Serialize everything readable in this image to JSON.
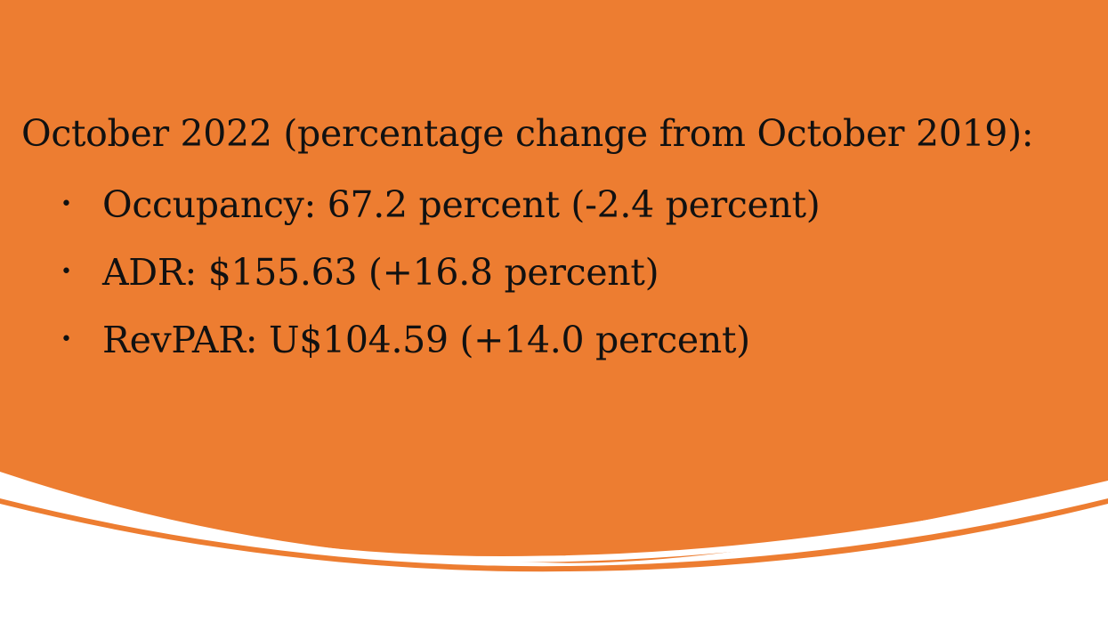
{
  "colors": {
    "accent_orange": "#ed7d31",
    "background": "#ffffff",
    "text": "#111111"
  },
  "slide": {
    "heading": "October 2022 (percentage change from October 2019):",
    "bullets": [
      {
        "label": "Occupancy: 67.2 percent (-2.4 percent)"
      },
      {
        "label": "ADR: $155.63 (+16.8 percent)"
      },
      {
        "label": "RevPAR: U$104.59 (+14.0 percent)"
      }
    ],
    "bullet_marker": "•"
  }
}
